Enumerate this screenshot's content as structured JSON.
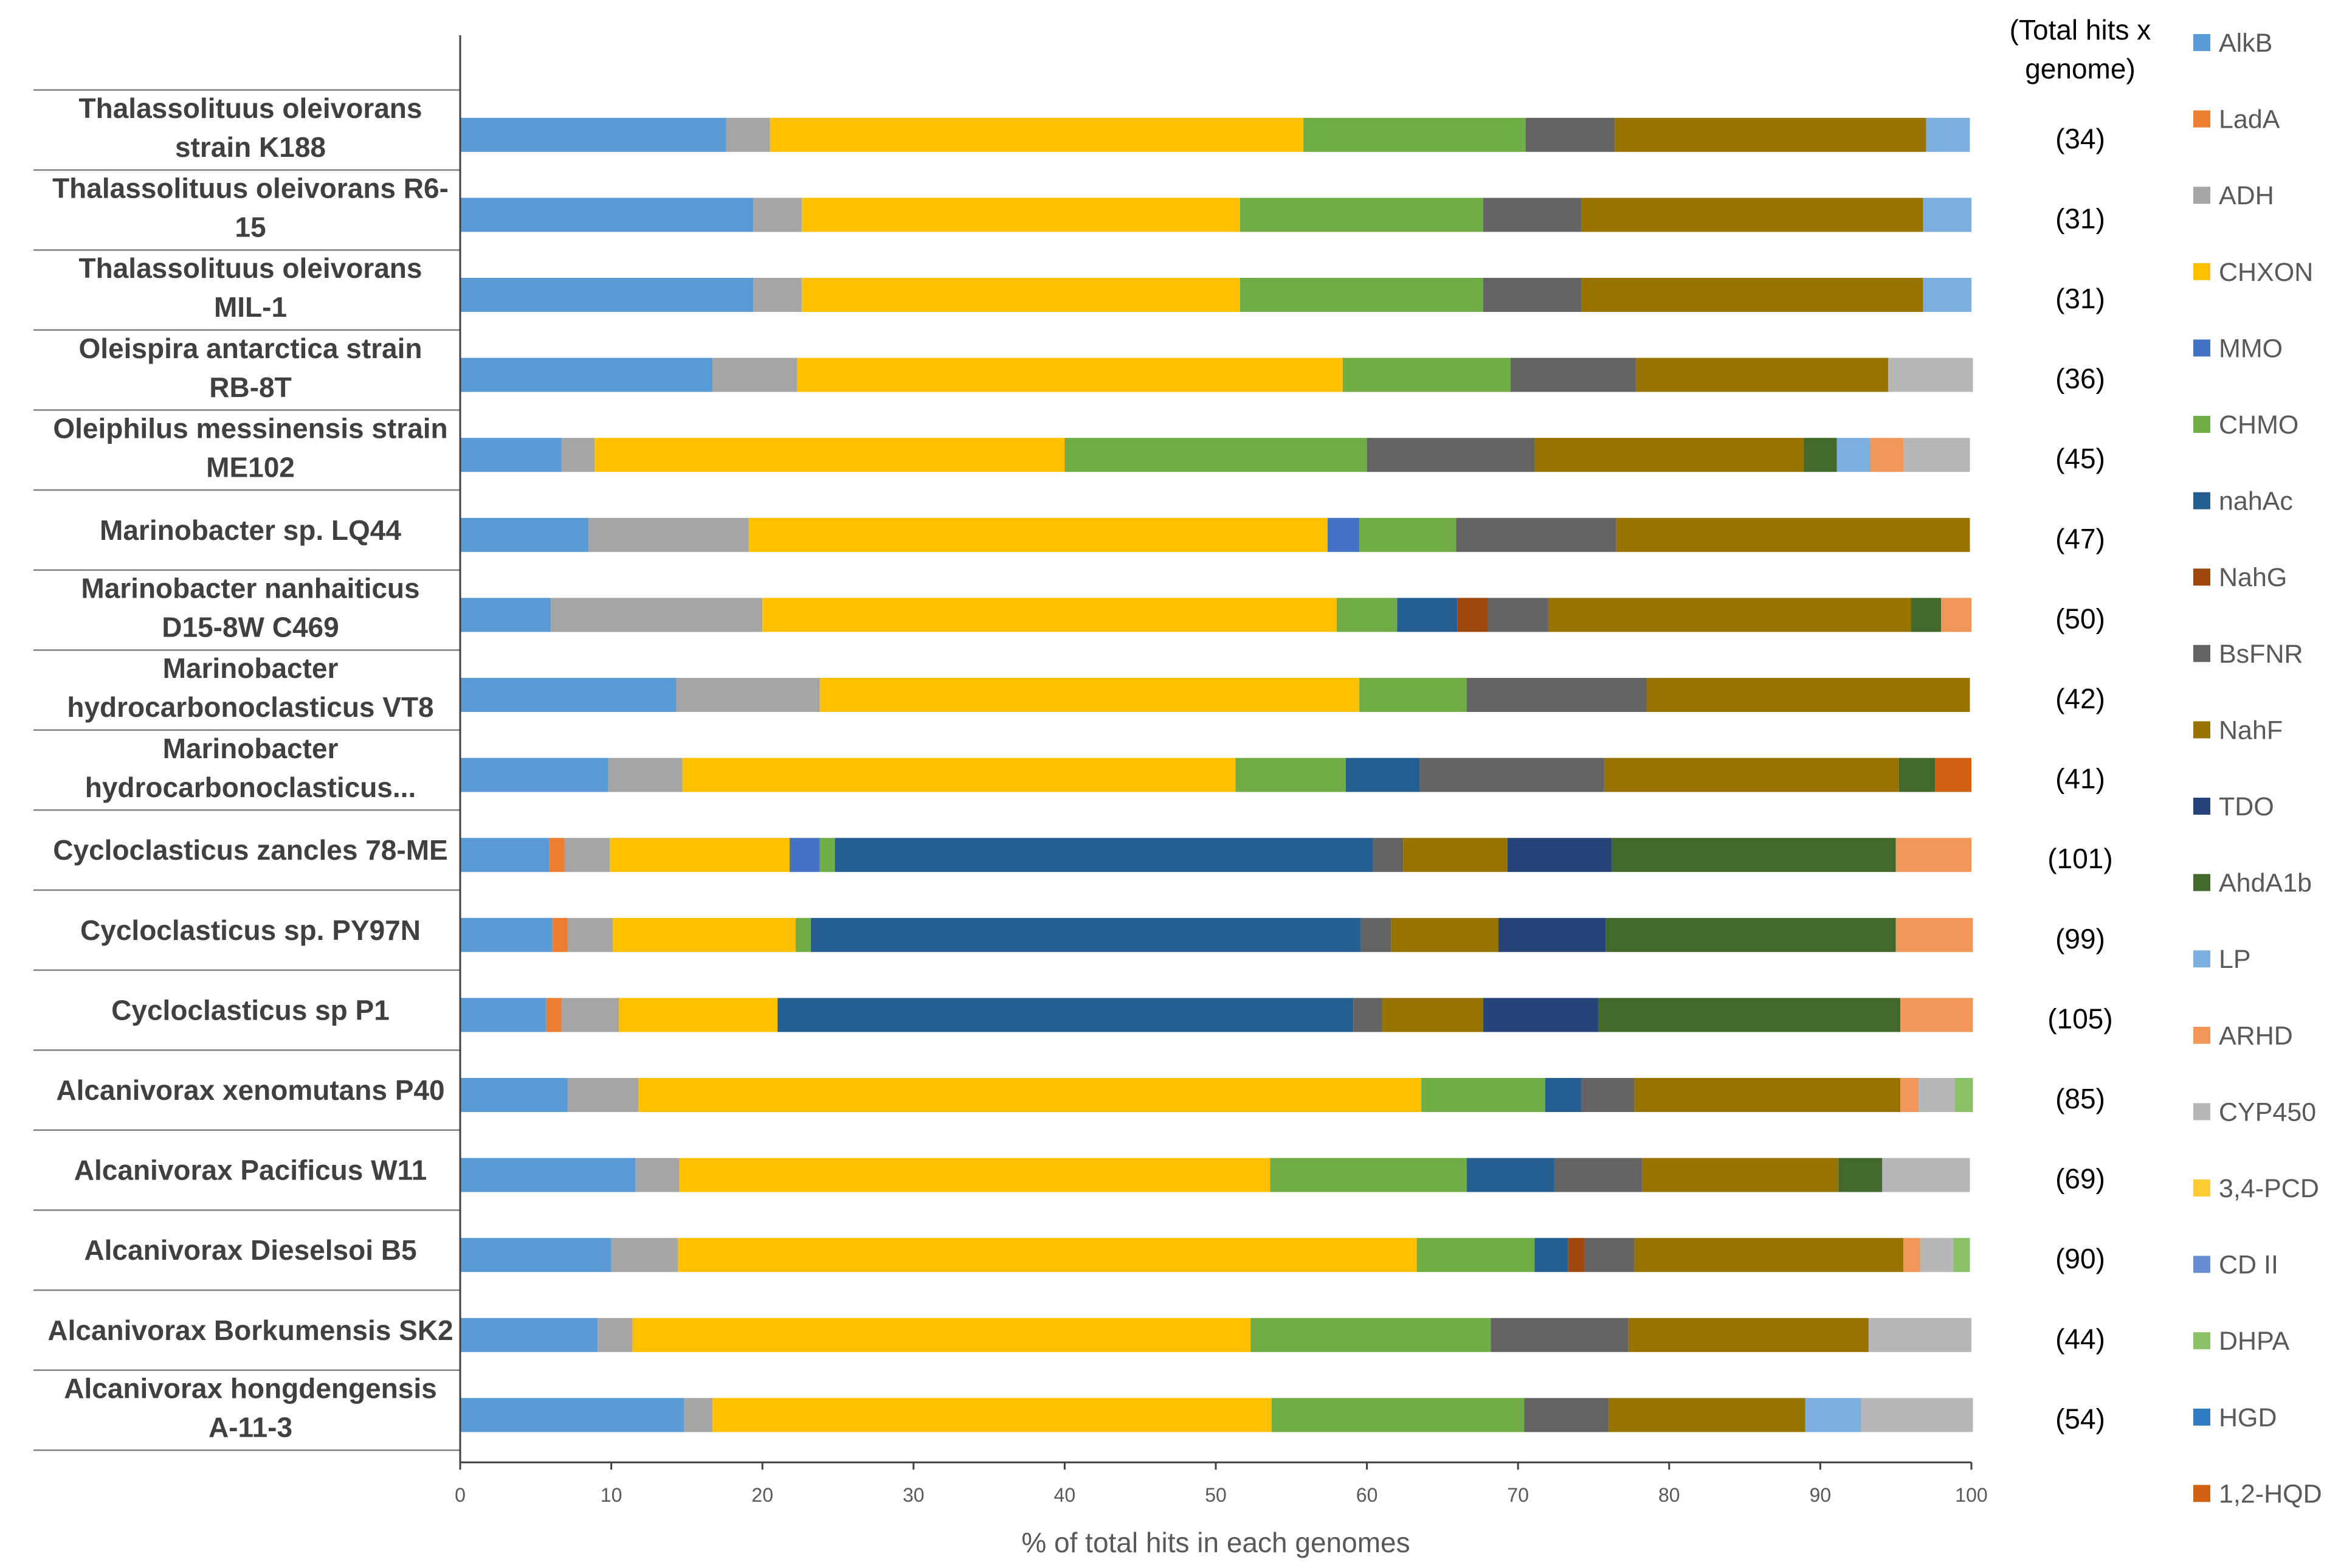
{
  "chart_data": {
    "type": "bar",
    "orientation": "horizontal",
    "stacked": true,
    "title": "",
    "xlabel": "% of total hits in each genomes",
    "ylabel": "",
    "xlim": [
      0,
      100
    ],
    "x_ticks": [
      "0",
      "10",
      "20",
      "30",
      "40",
      "50",
      "60",
      "70",
      "80",
      "90",
      "100"
    ],
    "total_header": [
      "(Total hits x",
      "genome)"
    ],
    "legend_position": "right",
    "categories": [
      {
        "label": [
          "Thalassolituus oleivorans",
          "strain K188"
        ],
        "total": "(34)"
      },
      {
        "label": [
          "Thalassolituus oleivorans R6-",
          "15"
        ],
        "total": "(31)"
      },
      {
        "label": [
          "Thalassolituus oleivorans",
          "MIL-1"
        ],
        "total": "(31)"
      },
      {
        "label": [
          "Oleispira antarctica strain",
          "RB-8T"
        ],
        "total": "(36)"
      },
      {
        "label": [
          "Oleiphilus messinensis strain",
          "ME102"
        ],
        "total": "(45)"
      },
      {
        "label": [
          "Marinobacter sp. LQ44"
        ],
        "total": "(47)"
      },
      {
        "label": [
          "Marinobacter nanhaiticus",
          "D15-8W C469"
        ],
        "total": "(50)"
      },
      {
        "label": [
          "Marinobacter",
          "hydrocarbonoclasticus VT8"
        ],
        "total": "(42)"
      },
      {
        "label": [
          "Marinobacter",
          "hydrocarbonoclasticus..."
        ],
        "total": "(41)"
      },
      {
        "label": [
          "Cycloclasticus zancles 78-ME"
        ],
        "total": "(101)"
      },
      {
        "label": [
          "Cycloclasticus sp. PY97N"
        ],
        "total": "(99)"
      },
      {
        "label": [
          "Cycloclasticus sp P1"
        ],
        "total": "(105)"
      },
      {
        "label": [
          "Alcanivorax xenomutans P40"
        ],
        "total": "(85)"
      },
      {
        "label": [
          "Alcanivorax Pacificus W11"
        ],
        "total": "(69)"
      },
      {
        "label": [
          "Alcanivorax Dieselsoi B5"
        ],
        "total": "(90)"
      },
      {
        "label": [
          "Alcanivorax Borkumensis SK2"
        ],
        "total": "(44)"
      },
      {
        "label": [
          "Alcanivorax hongdengensis",
          "A-11-3"
        ],
        "total": "(54)"
      }
    ],
    "series": [
      {
        "name": "AlkB",
        "color": "#5B9BD5",
        "values": [
          17.6,
          19.4,
          19.4,
          16.7,
          6.7,
          8.5,
          6.0,
          14.3,
          9.8,
          5.9,
          6.1,
          5.7,
          7.1,
          11.6,
          10.0,
          9.1,
          14.8
        ]
      },
      {
        "name": "LadA",
        "color": "#ED7D31",
        "values": [
          0,
          0,
          0,
          0,
          0,
          0,
          0,
          0,
          0,
          1.0,
          1.0,
          1.0,
          0,
          0,
          0,
          0,
          0
        ]
      },
      {
        "name": "ADH",
        "color": "#A5A5A5",
        "values": [
          2.9,
          3.2,
          3.2,
          5.6,
          2.2,
          10.6,
          14.0,
          9.5,
          4.9,
          3.0,
          3.0,
          3.8,
          4.7,
          2.9,
          4.4,
          2.3,
          1.9
        ]
      },
      {
        "name": "CHXON",
        "color": "#FFC000",
        "values": [
          35.3,
          29.0,
          29.0,
          36.1,
          31.1,
          38.3,
          38.0,
          35.7,
          36.6,
          11.9,
          12.1,
          10.5,
          51.8,
          39.1,
          48.9,
          40.9,
          37.0
        ]
      },
      {
        "name": "MMO",
        "color": "#4472C4",
        "values": [
          0,
          0,
          0,
          0,
          0,
          2.1,
          0,
          0,
          0,
          2.0,
          0,
          0,
          0,
          0,
          0,
          0,
          0
        ]
      },
      {
        "name": "CHMO",
        "color": "#70AD47",
        "values": [
          14.7,
          16.1,
          16.1,
          11.1,
          20.0,
          6.4,
          4.0,
          7.1,
          7.3,
          1.0,
          1.0,
          0,
          8.2,
          13.0,
          7.8,
          15.9,
          16.7
        ]
      },
      {
        "name": "nahAc",
        "color": "#255E91",
        "values": [
          0,
          0,
          0,
          0,
          0,
          0,
          4.0,
          0,
          4.9,
          35.6,
          36.4,
          38.1,
          2.4,
          5.8,
          2.2,
          0,
          0
        ]
      },
      {
        "name": "NahG",
        "color": "#9E480E",
        "values": [
          0,
          0,
          0,
          0,
          0,
          0,
          2.0,
          0,
          0,
          0,
          0,
          0,
          0,
          0,
          1.1,
          0,
          0
        ]
      },
      {
        "name": "BsFNR",
        "color": "#636363",
        "values": [
          5.9,
          6.5,
          6.5,
          8.3,
          11.1,
          10.6,
          4.0,
          11.9,
          12.2,
          2.0,
          2.0,
          1.9,
          3.5,
          5.8,
          3.3,
          9.1,
          5.6
        ]
      },
      {
        "name": "NahF",
        "color": "#997300",
        "values": [
          20.6,
          22.6,
          22.6,
          16.7,
          17.8,
          23.4,
          24.0,
          21.4,
          19.5,
          6.9,
          7.1,
          6.7,
          17.6,
          13.0,
          17.8,
          15.9,
          13.0
        ]
      },
      {
        "name": "TDO",
        "color": "#264478",
        "values": [
          0,
          0,
          0,
          0,
          0,
          0,
          0,
          0,
          0,
          6.9,
          7.1,
          7.6,
          0,
          0,
          0,
          0,
          0
        ]
      },
      {
        "name": "AhdA1b",
        "color": "#43682B",
        "values": [
          0,
          0,
          0,
          0,
          2.2,
          0,
          2.0,
          0,
          2.4,
          18.8,
          19.2,
          20.0,
          0,
          2.9,
          0,
          0,
          0
        ]
      },
      {
        "name": "LP",
        "color": "#7CAFDD",
        "values": [
          2.9,
          3.2,
          3.2,
          0,
          2.2,
          0,
          0,
          0,
          0,
          0,
          0,
          0,
          0,
          0,
          0,
          0,
          3.7
        ]
      },
      {
        "name": "ARHD",
        "color": "#F1975A",
        "values": [
          0,
          0,
          0,
          0,
          2.2,
          0,
          2.0,
          0,
          0,
          5.0,
          5.1,
          4.8,
          1.2,
          0,
          1.1,
          0,
          0
        ]
      },
      {
        "name": "CYP450",
        "color": "#B7B7B7",
        "values": [
          0,
          0,
          0,
          5.6,
          4.4,
          0,
          0,
          0,
          0,
          0,
          0,
          0,
          2.4,
          5.8,
          2.2,
          6.8,
          7.4
        ]
      },
      {
        "name": "3,4-PCD",
        "color": "#FFCD33",
        "values": [
          0,
          0,
          0,
          0,
          0,
          0,
          0,
          0,
          0,
          0,
          0,
          0,
          0,
          0,
          0,
          0,
          0
        ]
      },
      {
        "name": "CD II",
        "color": "#698ED0",
        "values": [
          0,
          0,
          0,
          0,
          0,
          0,
          0,
          0,
          0,
          0,
          0,
          0,
          0,
          0,
          0,
          0,
          0
        ]
      },
      {
        "name": "DHPA",
        "color": "#8CC168",
        "values": [
          0,
          0,
          0,
          0,
          0,
          0,
          0,
          0,
          0,
          0,
          0,
          0,
          1.2,
          0,
          1.1,
          0,
          0
        ]
      },
      {
        "name": "HGD",
        "color": "#327DC2",
        "values": [
          0,
          0,
          0,
          0,
          0,
          0,
          0,
          0,
          0,
          0,
          0,
          0,
          0,
          0,
          0,
          0,
          0
        ]
      },
      {
        "name": "1,2-HQD",
        "color": "#D26012",
        "values": [
          0,
          0,
          0,
          0,
          0,
          0,
          0,
          0,
          2.4,
          0,
          0,
          0,
          0,
          0,
          0,
          0,
          0
        ]
      }
    ]
  }
}
